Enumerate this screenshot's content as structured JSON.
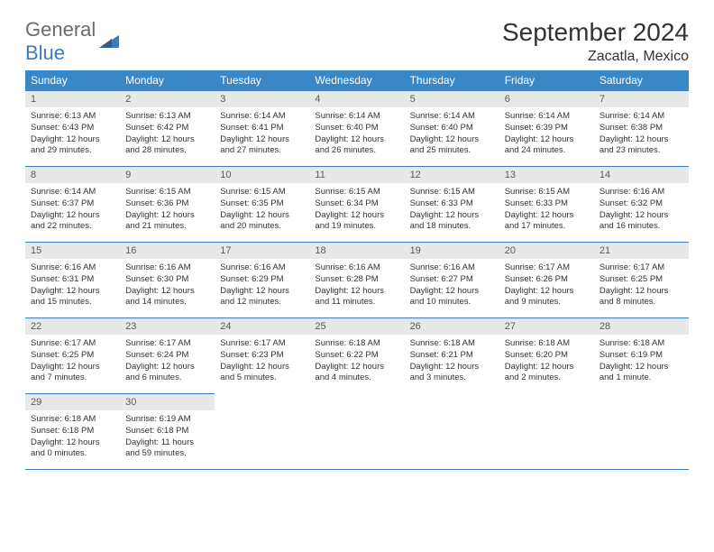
{
  "logo": {
    "text1": "General",
    "text2": "Blue"
  },
  "title": "September 2024",
  "location": "Zacatla, Mexico",
  "colors": {
    "header_bg": "#3a87c8",
    "header_text": "#ffffff",
    "border": "#3a7bbf",
    "daynum_bg": "#e8e8e8",
    "daynum_text": "#5a5a5a",
    "body_text": "#333333",
    "logo_blue": "#3a7bbf",
    "logo_gray": "#6b6b6b"
  },
  "weekdays": [
    "Sunday",
    "Monday",
    "Tuesday",
    "Wednesday",
    "Thursday",
    "Friday",
    "Saturday"
  ],
  "weeks": [
    [
      {
        "n": "1",
        "sr": "Sunrise: 6:13 AM",
        "ss": "Sunset: 6:43 PM",
        "dl": "Daylight: 12 hours and 29 minutes."
      },
      {
        "n": "2",
        "sr": "Sunrise: 6:13 AM",
        "ss": "Sunset: 6:42 PM",
        "dl": "Daylight: 12 hours and 28 minutes."
      },
      {
        "n": "3",
        "sr": "Sunrise: 6:14 AM",
        "ss": "Sunset: 6:41 PM",
        "dl": "Daylight: 12 hours and 27 minutes."
      },
      {
        "n": "4",
        "sr": "Sunrise: 6:14 AM",
        "ss": "Sunset: 6:40 PM",
        "dl": "Daylight: 12 hours and 26 minutes."
      },
      {
        "n": "5",
        "sr": "Sunrise: 6:14 AM",
        "ss": "Sunset: 6:40 PM",
        "dl": "Daylight: 12 hours and 25 minutes."
      },
      {
        "n": "6",
        "sr": "Sunrise: 6:14 AM",
        "ss": "Sunset: 6:39 PM",
        "dl": "Daylight: 12 hours and 24 minutes."
      },
      {
        "n": "7",
        "sr": "Sunrise: 6:14 AM",
        "ss": "Sunset: 6:38 PM",
        "dl": "Daylight: 12 hours and 23 minutes."
      }
    ],
    [
      {
        "n": "8",
        "sr": "Sunrise: 6:14 AM",
        "ss": "Sunset: 6:37 PM",
        "dl": "Daylight: 12 hours and 22 minutes."
      },
      {
        "n": "9",
        "sr": "Sunrise: 6:15 AM",
        "ss": "Sunset: 6:36 PM",
        "dl": "Daylight: 12 hours and 21 minutes."
      },
      {
        "n": "10",
        "sr": "Sunrise: 6:15 AM",
        "ss": "Sunset: 6:35 PM",
        "dl": "Daylight: 12 hours and 20 minutes."
      },
      {
        "n": "11",
        "sr": "Sunrise: 6:15 AM",
        "ss": "Sunset: 6:34 PM",
        "dl": "Daylight: 12 hours and 19 minutes."
      },
      {
        "n": "12",
        "sr": "Sunrise: 6:15 AM",
        "ss": "Sunset: 6:33 PM",
        "dl": "Daylight: 12 hours and 18 minutes."
      },
      {
        "n": "13",
        "sr": "Sunrise: 6:15 AM",
        "ss": "Sunset: 6:33 PM",
        "dl": "Daylight: 12 hours and 17 minutes."
      },
      {
        "n": "14",
        "sr": "Sunrise: 6:16 AM",
        "ss": "Sunset: 6:32 PM",
        "dl": "Daylight: 12 hours and 16 minutes."
      }
    ],
    [
      {
        "n": "15",
        "sr": "Sunrise: 6:16 AM",
        "ss": "Sunset: 6:31 PM",
        "dl": "Daylight: 12 hours and 15 minutes."
      },
      {
        "n": "16",
        "sr": "Sunrise: 6:16 AM",
        "ss": "Sunset: 6:30 PM",
        "dl": "Daylight: 12 hours and 14 minutes."
      },
      {
        "n": "17",
        "sr": "Sunrise: 6:16 AM",
        "ss": "Sunset: 6:29 PM",
        "dl": "Daylight: 12 hours and 12 minutes."
      },
      {
        "n": "18",
        "sr": "Sunrise: 6:16 AM",
        "ss": "Sunset: 6:28 PM",
        "dl": "Daylight: 12 hours and 11 minutes."
      },
      {
        "n": "19",
        "sr": "Sunrise: 6:16 AM",
        "ss": "Sunset: 6:27 PM",
        "dl": "Daylight: 12 hours and 10 minutes."
      },
      {
        "n": "20",
        "sr": "Sunrise: 6:17 AM",
        "ss": "Sunset: 6:26 PM",
        "dl": "Daylight: 12 hours and 9 minutes."
      },
      {
        "n": "21",
        "sr": "Sunrise: 6:17 AM",
        "ss": "Sunset: 6:25 PM",
        "dl": "Daylight: 12 hours and 8 minutes."
      }
    ],
    [
      {
        "n": "22",
        "sr": "Sunrise: 6:17 AM",
        "ss": "Sunset: 6:25 PM",
        "dl": "Daylight: 12 hours and 7 minutes."
      },
      {
        "n": "23",
        "sr": "Sunrise: 6:17 AM",
        "ss": "Sunset: 6:24 PM",
        "dl": "Daylight: 12 hours and 6 minutes."
      },
      {
        "n": "24",
        "sr": "Sunrise: 6:17 AM",
        "ss": "Sunset: 6:23 PM",
        "dl": "Daylight: 12 hours and 5 minutes."
      },
      {
        "n": "25",
        "sr": "Sunrise: 6:18 AM",
        "ss": "Sunset: 6:22 PM",
        "dl": "Daylight: 12 hours and 4 minutes."
      },
      {
        "n": "26",
        "sr": "Sunrise: 6:18 AM",
        "ss": "Sunset: 6:21 PM",
        "dl": "Daylight: 12 hours and 3 minutes."
      },
      {
        "n": "27",
        "sr": "Sunrise: 6:18 AM",
        "ss": "Sunset: 6:20 PM",
        "dl": "Daylight: 12 hours and 2 minutes."
      },
      {
        "n": "28",
        "sr": "Sunrise: 6:18 AM",
        "ss": "Sunset: 6:19 PM",
        "dl": "Daylight: 12 hours and 1 minute."
      }
    ],
    [
      {
        "n": "29",
        "sr": "Sunrise: 6:18 AM",
        "ss": "Sunset: 6:18 PM",
        "dl": "Daylight: 12 hours and 0 minutes."
      },
      {
        "n": "30",
        "sr": "Sunrise: 6:19 AM",
        "ss": "Sunset: 6:18 PM",
        "dl": "Daylight: 11 hours and 59 minutes."
      },
      null,
      null,
      null,
      null,
      null
    ]
  ]
}
